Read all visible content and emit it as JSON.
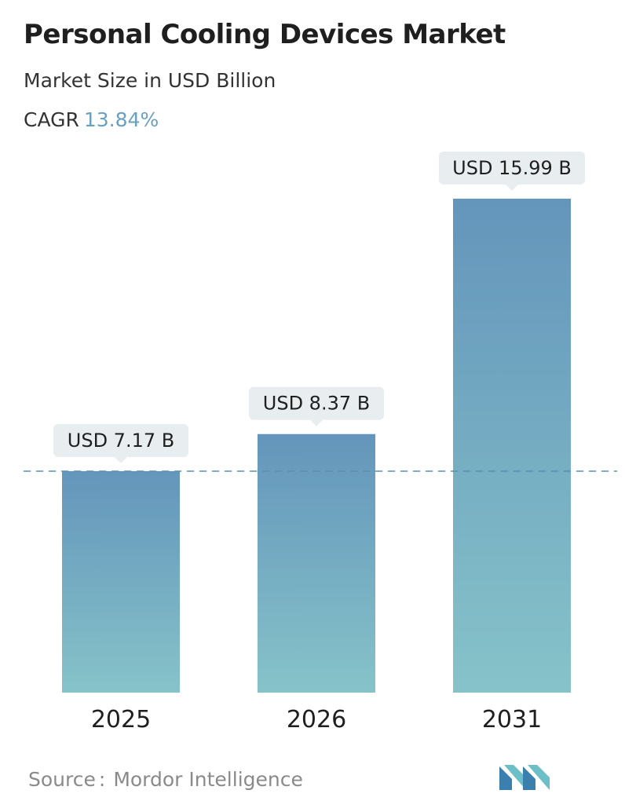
{
  "header": {
    "title": "Personal Cooling Devices Market",
    "subtitle": "Market Size in USD Billion",
    "cagr_label": "CAGR",
    "cagr_value": "13.84%"
  },
  "chart_data": {
    "type": "bar",
    "title": "Personal Cooling Devices Market",
    "subtitle": "Market Size in USD Billion",
    "categories": [
      "2025",
      "2026",
      "2031"
    ],
    "values": [
      7.17,
      8.37,
      15.99
    ],
    "data_labels": [
      "USD 7.17 B",
      "USD 8.37 B",
      "USD 15.99 B"
    ],
    "reference_line_value": 7.17,
    "ylim": [
      0,
      15.99
    ],
    "grid": false,
    "colors": {
      "bar_top": "#6495bb",
      "bar_bottom": "#86c3c9",
      "label_bg": "#e8eef0",
      "ref_line": "#5a90ab",
      "accent": "#6aa0bf"
    }
  },
  "footer": {
    "source_label": "Source",
    "source_sep": ":",
    "source_value": "Mordor Intelligence",
    "logo_icon": "mordor-intelligence-logo-icon"
  }
}
